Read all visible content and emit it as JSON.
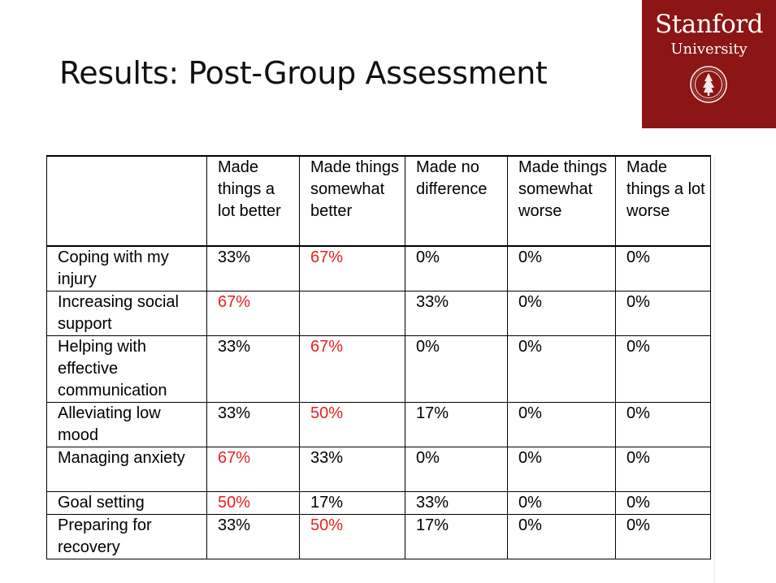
{
  "slide": {
    "title": "Results: Post-Group Assessment"
  },
  "logo": {
    "name": "Stanford",
    "subtitle": "University",
    "seal_icon": "stanford-seal-icon",
    "background": "#8c1515"
  },
  "table": {
    "highlight_color": "#e8211c",
    "headers": [
      "",
      "Made things a lot better",
      "Made things somewhat better",
      "Made no difference",
      "Made things somewhat worse",
      "Made things a lot worse"
    ],
    "rows": [
      {
        "label": "Coping with my injury",
        "cells": [
          "33%",
          "67%",
          "0%",
          "0%",
          "0%"
        ],
        "highlight": 1
      },
      {
        "label": "Increasing social support",
        "cells": [
          "67%",
          "",
          "33%",
          "0%",
          "0%"
        ],
        "highlight": 0
      },
      {
        "label": "Helping with effective communication",
        "cells": [
          "33%",
          "67%",
          "0%",
          "0%",
          "0%"
        ],
        "highlight": 1
      },
      {
        "label": "Alleviating low mood",
        "cells": [
          "33%",
          "50%",
          "17%",
          "0%",
          "0%"
        ],
        "highlight": 1
      },
      {
        "label": "Managing anxiety",
        "cells": [
          "67%",
          "33%",
          "0%",
          "0%",
          "0%"
        ],
        "highlight": 0
      },
      {
        "label": "Goal setting",
        "cells": [
          "50%",
          "17%",
          "33%",
          "0%",
          "0%"
        ],
        "highlight": 0
      },
      {
        "label": "Preparing for recovery",
        "cells": [
          "33%",
          "50%",
          "17%",
          "0%",
          "0%"
        ],
        "highlight": 1
      }
    ]
  }
}
